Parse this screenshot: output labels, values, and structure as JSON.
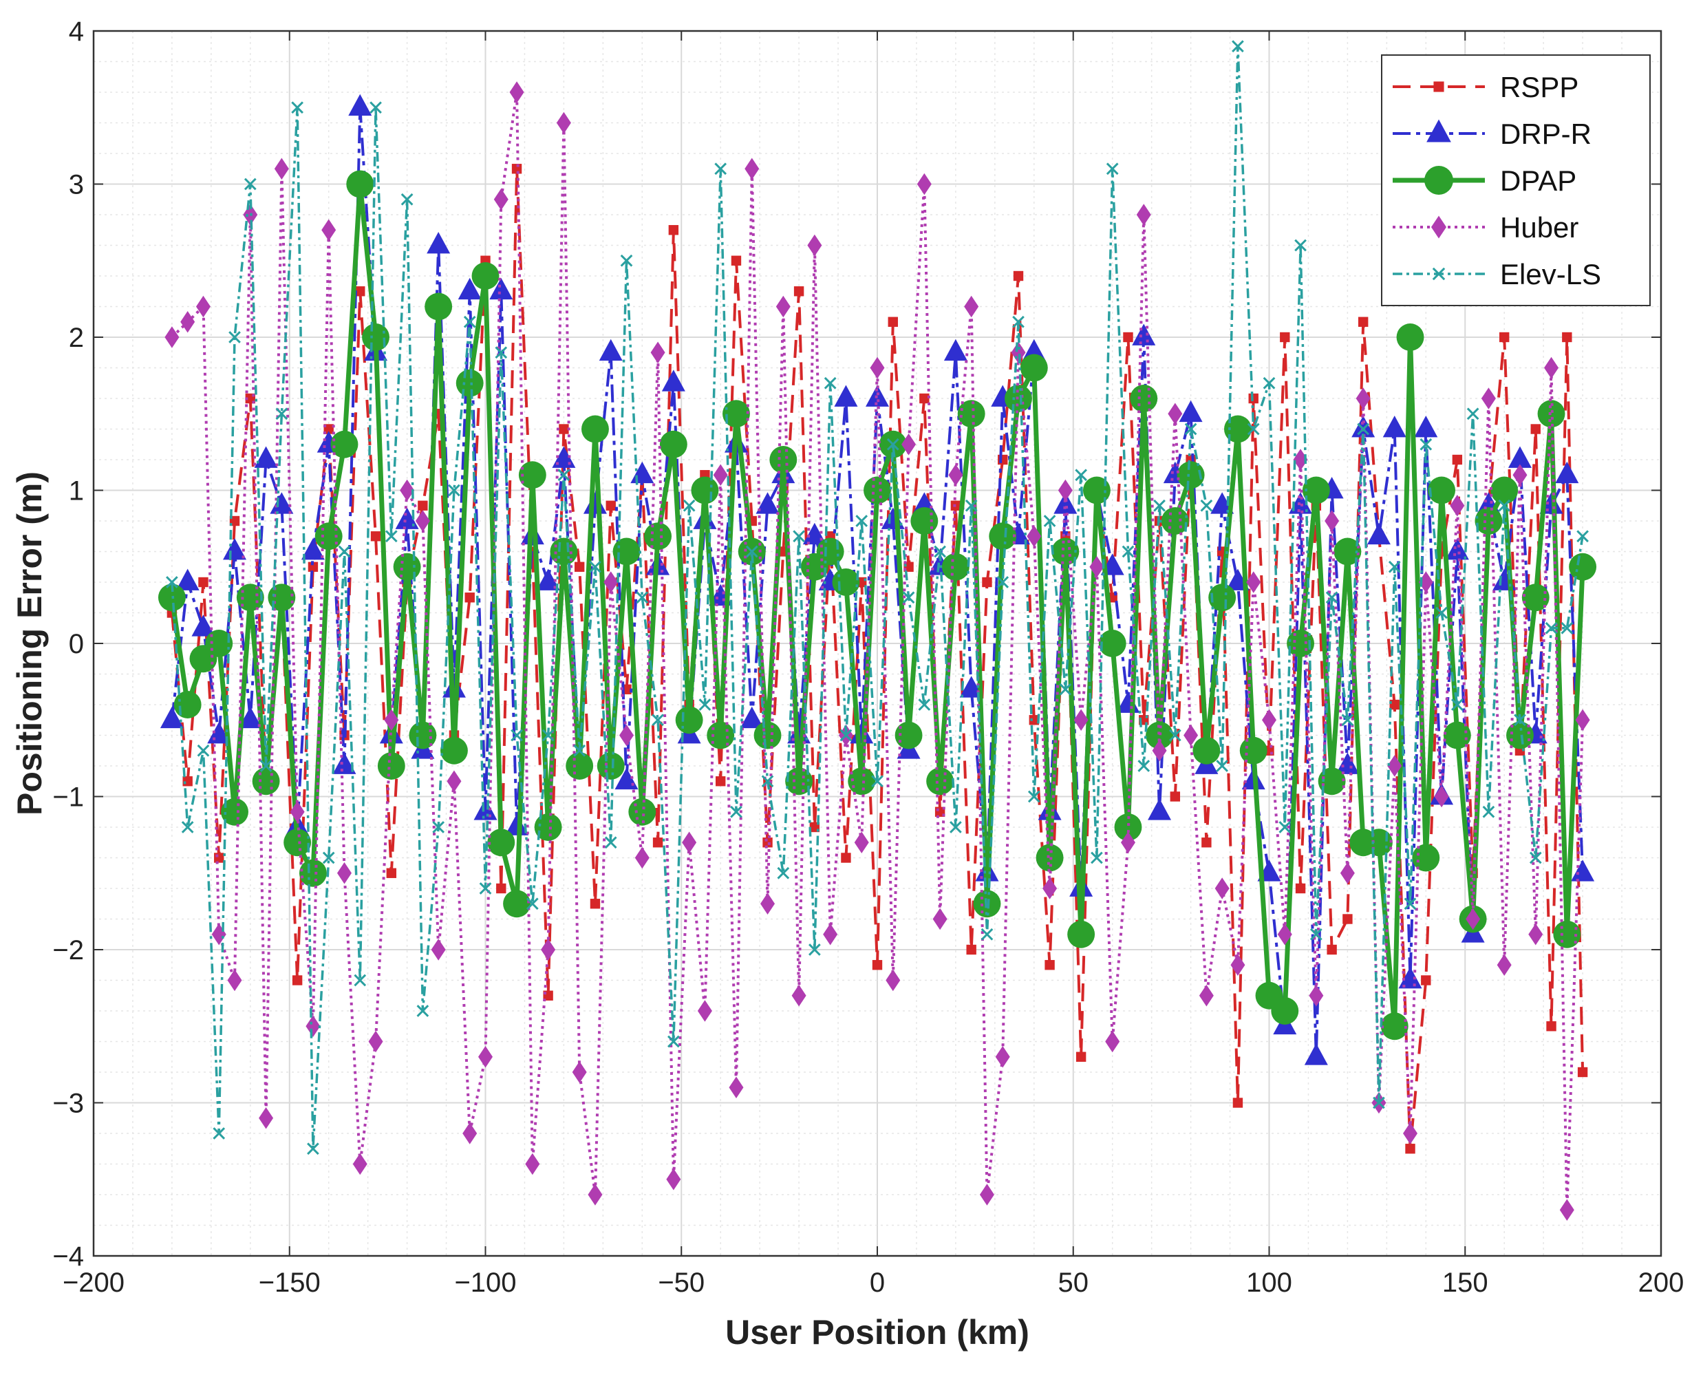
{
  "chart_data": {
    "type": "line",
    "title": "",
    "xlabel": "User Position (km)",
    "ylabel": "Positioning Error (m)",
    "xlim": [
      -200,
      200
    ],
    "ylim": [
      -4,
      4
    ],
    "x_ticks": [
      -200,
      -150,
      -100,
      -50,
      0,
      50,
      100,
      150,
      200
    ],
    "y_ticks": [
      -4,
      -3,
      -2,
      -1,
      0,
      1,
      2,
      3,
      4
    ],
    "x_tick_labels": [
      "−200",
      "−150",
      "−100",
      "−50",
      "0",
      "50",
      "100",
      "150",
      "200"
    ],
    "y_tick_labels": [
      "−4",
      "−3",
      "−2",
      "−1",
      "0",
      "1",
      "2",
      "3",
      "4"
    ],
    "grid": true,
    "minor_grid": true,
    "legend_position": "top-right",
    "x": [
      -180,
      -176,
      -172,
      -168,
      -164,
      -160,
      -156,
      -152,
      -148,
      -144,
      -140,
      -136,
      -132,
      -128,
      -124,
      -120,
      -116,
      -112,
      -108,
      -104,
      -100,
      -96,
      -92,
      -88,
      -84,
      -80,
      -76,
      -72,
      -68,
      -64,
      -60,
      -56,
      -52,
      -48,
      -44,
      -40,
      -36,
      -32,
      -28,
      -24,
      -20,
      -16,
      -12,
      -8,
      -4,
      0,
      4,
      8,
      12,
      16,
      20,
      24,
      28,
      32,
      36,
      40,
      44,
      48,
      52,
      56,
      60,
      64,
      68,
      72,
      76,
      80,
      84,
      88,
      92,
      96,
      100,
      104,
      108,
      112,
      116,
      120,
      124,
      128,
      132,
      136,
      140,
      144,
      148,
      152,
      156,
      160,
      164,
      168,
      172,
      176,
      180
    ],
    "series": [
      {
        "name": "RSPP",
        "color": "#d62728",
        "dash": "26,14",
        "marker": "square",
        "values": [
          0.2,
          -0.9,
          0.4,
          -1.4,
          0.8,
          1.6,
          -0.9,
          0.3,
          -2.2,
          0.5,
          1.4,
          -0.6,
          2.3,
          0.7,
          -1.5,
          0.4,
          0.9,
          1.5,
          -0.6,
          0.3,
          2.5,
          -1.6,
          3.1,
          0.6,
          -2.3,
          1.4,
          0.5,
          -1.7,
          0.9,
          -0.3,
          1.1,
          -1.3,
          2.7,
          -0.4,
          1.1,
          -0.9,
          2.5,
          0.8,
          -1.3,
          0.6,
          2.3,
          -1.2,
          0.7,
          -1.4,
          0.4,
          -2.1,
          2.1,
          0.5,
          1.6,
          -1.1,
          0.9,
          -2.0,
          0.4,
          1.2,
          2.4,
          -0.5,
          -2.1,
          0.7,
          -2.7,
          1.0,
          0.3,
          2.0,
          -0.5,
          0.8,
          -1.0,
          1.2,
          -1.3,
          0.6,
          -3.0,
          1.6,
          -0.7,
          2.0,
          -1.6,
          0.9,
          -2.0,
          -1.8,
          2.1,
          0.7,
          -0.4,
          -3.3,
          -2.2,
          0.6,
          1.2,
          -1.5,
          0.9,
          2.0,
          -0.7,
          1.4,
          -2.5,
          2.0,
          -2.8
        ]
      },
      {
        "name": "DRP-R",
        "color": "#2f2fd0",
        "dash": "26,8,6,8",
        "marker": "triangle",
        "values": [
          -0.5,
          0.4,
          0.1,
          -0.6,
          0.6,
          -0.5,
          1.2,
          0.9,
          -1.2,
          0.6,
          1.3,
          -0.8,
          3.5,
          1.9,
          -0.6,
          0.8,
          -0.7,
          2.6,
          -0.3,
          2.3,
          -1.1,
          2.3,
          -1.2,
          0.7,
          0.4,
          1.2,
          -0.8,
          0.9,
          1.9,
          -0.9,
          1.1,
          0.5,
          1.7,
          -0.6,
          0.8,
          0.3,
          1.3,
          -0.5,
          0.9,
          1.1,
          -0.6,
          0.7,
          0.4,
          1.6,
          -0.6,
          1.6,
          0.8,
          -0.7,
          0.9,
          0.5,
          1.9,
          -0.3,
          -1.5,
          1.6,
          0.7,
          1.9,
          -1.1,
          0.9,
          -1.6,
          1.0,
          0.5,
          -0.4,
          2.0,
          -1.1,
          1.1,
          1.5,
          -0.8,
          0.9,
          0.4,
          -0.9,
          -1.5,
          -2.5,
          0.9,
          -2.7,
          1.0,
          -0.8,
          1.4,
          0.7,
          1.4,
          -2.2,
          1.4,
          -1.0,
          0.6,
          -1.9,
          0.9,
          0.4,
          1.2,
          -0.6,
          0.9,
          1.1,
          -1.5
        ]
      },
      {
        "name": "DPAP",
        "color": "#2ca02c",
        "dash": "",
        "marker": "circle",
        "values": [
          0.3,
          -0.4,
          -0.1,
          0.0,
          -1.1,
          0.3,
          -0.9,
          0.3,
          -1.3,
          -1.5,
          0.7,
          1.3,
          3.0,
          2.0,
          -0.8,
          0.5,
          -0.6,
          2.2,
          -0.7,
          1.7,
          2.4,
          -1.3,
          -1.7,
          1.1,
          -1.2,
          0.6,
          -0.8,
          1.4,
          -0.8,
          0.6,
          -1.1,
          0.7,
          1.3,
          -0.5,
          1.0,
          -0.6,
          1.5,
          0.6,
          -0.6,
          1.2,
          -0.9,
          0.5,
          0.6,
          0.4,
          -0.9,
          1.0,
          1.3,
          -0.6,
          0.8,
          -0.9,
          0.5,
          1.5,
          -1.7,
          0.7,
          1.6,
          1.8,
          -1.4,
          0.6,
          -1.9,
          1.0,
          0.0,
          -1.2,
          1.6,
          -0.6,
          0.8,
          1.1,
          -0.7,
          0.3,
          1.4,
          -0.7,
          -2.3,
          -2.4,
          0.0,
          1.0,
          -0.9,
          0.6,
          -1.3,
          -1.3,
          -2.5,
          2.0,
          -1.4,
          1.0,
          -0.6,
          -1.8,
          0.8,
          1.0,
          -0.6,
          0.3,
          1.5,
          -1.9,
          0.5
        ]
      },
      {
        "name": "Huber",
        "color": "#b03cb0",
        "dash": "4,6",
        "marker": "diamond",
        "values": [
          2.0,
          2.1,
          2.2,
          -1.9,
          -2.2,
          2.8,
          -3.1,
          3.1,
          -1.1,
          -2.5,
          2.7,
          -1.5,
          -3.4,
          -2.6,
          -0.5,
          1.0,
          0.8,
          -2.0,
          -0.9,
          -3.2,
          -2.7,
          2.9,
          3.6,
          -3.4,
          -2.0,
          3.4,
          -2.8,
          -3.6,
          0.4,
          -0.6,
          -1.4,
          1.9,
          -3.5,
          -1.3,
          -2.4,
          1.1,
          -2.9,
          3.1,
          -1.7,
          2.2,
          -2.3,
          2.6,
          -1.9,
          -0.6,
          -1.3,
          1.8,
          -2.2,
          1.3,
          3.0,
          -1.8,
          1.1,
          2.2,
          -3.6,
          -2.7,
          1.9,
          0.7,
          -1.6,
          1.0,
          -0.5,
          0.5,
          -2.6,
          -1.3,
          2.8,
          -0.7,
          1.5,
          -0.6,
          -2.3,
          -1.6,
          -2.1,
          0.4,
          -0.5,
          -1.9,
          1.2,
          -2.3,
          0.8,
          -1.5,
          1.6,
          -3.0,
          -0.8,
          -3.2,
          0.4,
          -1.0,
          0.9,
          -1.8,
          1.6,
          -2.1,
          1.1,
          -1.9,
          1.8,
          -3.7,
          -0.5
        ]
      },
      {
        "name": "Elev-LS",
        "color": "#2aa0a0",
        "dash": "14,6,4,6",
        "marker": "x",
        "values": [
          0.4,
          -1.2,
          -0.7,
          -3.2,
          2.0,
          3.0,
          -0.8,
          1.5,
          3.5,
          -3.3,
          -1.4,
          0.6,
          -2.2,
          3.5,
          0.7,
          2.9,
          -2.4,
          -1.2,
          1.0,
          2.1,
          -1.6,
          1.9,
          -0.6,
          -1.7,
          -0.6,
          1.1,
          -0.7,
          0.5,
          -1.3,
          2.5,
          0.3,
          -0.5,
          -2.6,
          0.9,
          -0.4,
          3.1,
          -1.1,
          0.6,
          -0.9,
          -1.5,
          0.7,
          -2.0,
          1.7,
          -0.6,
          0.8,
          -0.9,
          1.3,
          0.3,
          -0.4,
          0.6,
          -1.2,
          0.9,
          -1.9,
          0.4,
          2.1,
          -1.0,
          0.8,
          -0.3,
          1.1,
          -1.4,
          3.1,
          0.6,
          -0.8,
          0.9,
          -0.6,
          1.4,
          0.9,
          -0.8,
          3.9,
          1.4,
          1.7,
          -1.2,
          2.6,
          -1.9,
          0.3,
          -0.5,
          1.4,
          -3.0,
          0.5,
          -1.7,
          1.3,
          0.2,
          -0.4,
          1.5,
          -1.1,
          0.9,
          -0.5,
          -1.4,
          0.1,
          0.1,
          0.7
        ]
      }
    ]
  }
}
